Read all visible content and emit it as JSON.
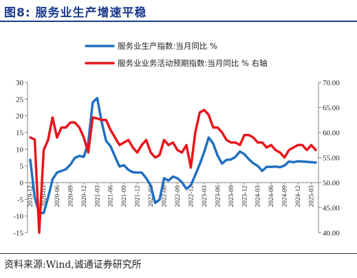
{
  "header": {
    "title": "图8:  服务业生产增速平稳"
  },
  "footer": {
    "source": "资料来源:Wind,诚通证券研究所"
  },
  "chart_data": {
    "type": "line",
    "title": "",
    "grid": false,
    "legend": "top-right",
    "x_ticks": [
      "2019-12",
      "2020-03",
      "2020-06",
      "2020-09",
      "2020-12",
      "2021-03",
      "2021-06",
      "2021-09",
      "2021-12",
      "2022-03",
      "2022-06",
      "2022-09",
      "2022-12",
      "2023-03",
      "2023-06",
      "2023-09",
      "2023-12",
      "2024-03",
      "2024-06",
      "2024-09",
      "2024-12",
      "2025-03"
    ],
    "x": [
      "2019-12",
      "2020-01",
      "2020-02",
      "2020-03",
      "2020-04",
      "2020-05",
      "2020-06",
      "2020-07",
      "2020-08",
      "2020-09",
      "2020-10",
      "2020-11",
      "2020-12",
      "2021-01",
      "2021-02",
      "2021-03",
      "2021-04",
      "2021-05",
      "2021-06",
      "2021-07",
      "2021-08",
      "2021-09",
      "2021-10",
      "2021-11",
      "2021-12",
      "2022-01",
      "2022-02",
      "2022-03",
      "2022-04",
      "2022-05",
      "2022-06",
      "2022-07",
      "2022-08",
      "2022-09",
      "2022-10",
      "2022-11",
      "2022-12",
      "2023-01",
      "2023-02",
      "2023-03",
      "2023-04",
      "2023-05",
      "2023-06",
      "2023-07",
      "2023-08",
      "2023-09",
      "2023-10",
      "2023-11",
      "2023-12",
      "2024-01",
      "2024-02",
      "2024-03",
      "2024-04",
      "2024-05",
      "2024-06",
      "2024-07",
      "2024-08",
      "2024-09",
      "2024-10",
      "2024-11",
      "2024-12",
      "2025-01",
      "2025-02",
      "2025-03",
      "2025-04"
    ],
    "y_left": {
      "ylim": [
        -15,
        30
      ],
      "ticks": [
        -15,
        -10,
        -5,
        0,
        5,
        10,
        15,
        20,
        25,
        30
      ]
    },
    "y_right": {
      "ylim": [
        40,
        70
      ],
      "ticks": [
        "40.00",
        "45.00",
        "50.00",
        "55.00",
        "60.00",
        "65.00",
        "70.00"
      ]
    },
    "series": [
      {
        "name": "服务业生产指数:当月同比  %",
        "axis": "left",
        "color": "#1f6fc0",
        "values": [
          6.8,
          -4.5,
          -9.1,
          -9.1,
          -4.5,
          1.0,
          3.0,
          3.5,
          4.0,
          5.4,
          7.4,
          8.0,
          7.7,
          12.0,
          24.0,
          25.3,
          18.2,
          12.5,
          10.9,
          7.8,
          4.8,
          5.2,
          3.8,
          3.1,
          3.0,
          3.0,
          1.3,
          -0.9,
          -6.1,
          -5.1,
          1.3,
          0.6,
          1.8,
          1.3,
          0.1,
          -1.9,
          -0.8,
          2.3,
          5.5,
          9.2,
          13.5,
          11.7,
          8.1,
          5.7,
          6.8,
          6.9,
          7.7,
          9.3,
          8.5,
          7.0,
          5.8,
          5.0,
          3.5,
          4.7,
          4.7,
          4.8,
          4.6,
          5.1,
          6.3,
          6.1,
          6.4,
          6.3,
          6.2,
          6.1,
          6.0
        ]
      },
      {
        "name": "服务业业务活动预期指数:当月同比  %  右轴",
        "axis": "right",
        "color": "#e8141b",
        "values": [
          59.0,
          58.6,
          40.0,
          56.5,
          58.5,
          63.0,
          59.0,
          61.0,
          61.0,
          62.0,
          62.0,
          61.0,
          59.0,
          56.0,
          63.0,
          62.8,
          62.5,
          62.5,
          60.5,
          59.0,
          57.5,
          58.0,
          58.5,
          57.0,
          56.0,
          57.5,
          58.5,
          56.0,
          55.0,
          55.5,
          58.5,
          57.5,
          58.0,
          56.5,
          56.0,
          57.5,
          53.0,
          60.0,
          64.0,
          64.5,
          63.5,
          61.0,
          61.0,
          60.0,
          58.5,
          58.0,
          58.0,
          57.5,
          59.5,
          59.5,
          59.0,
          58.0,
          58.0,
          57.0,
          57.5,
          56.5,
          56.0,
          55.0,
          56.5,
          57.0,
          57.5,
          57.5,
          56.5,
          57.5,
          56.5
        ]
      }
    ]
  }
}
